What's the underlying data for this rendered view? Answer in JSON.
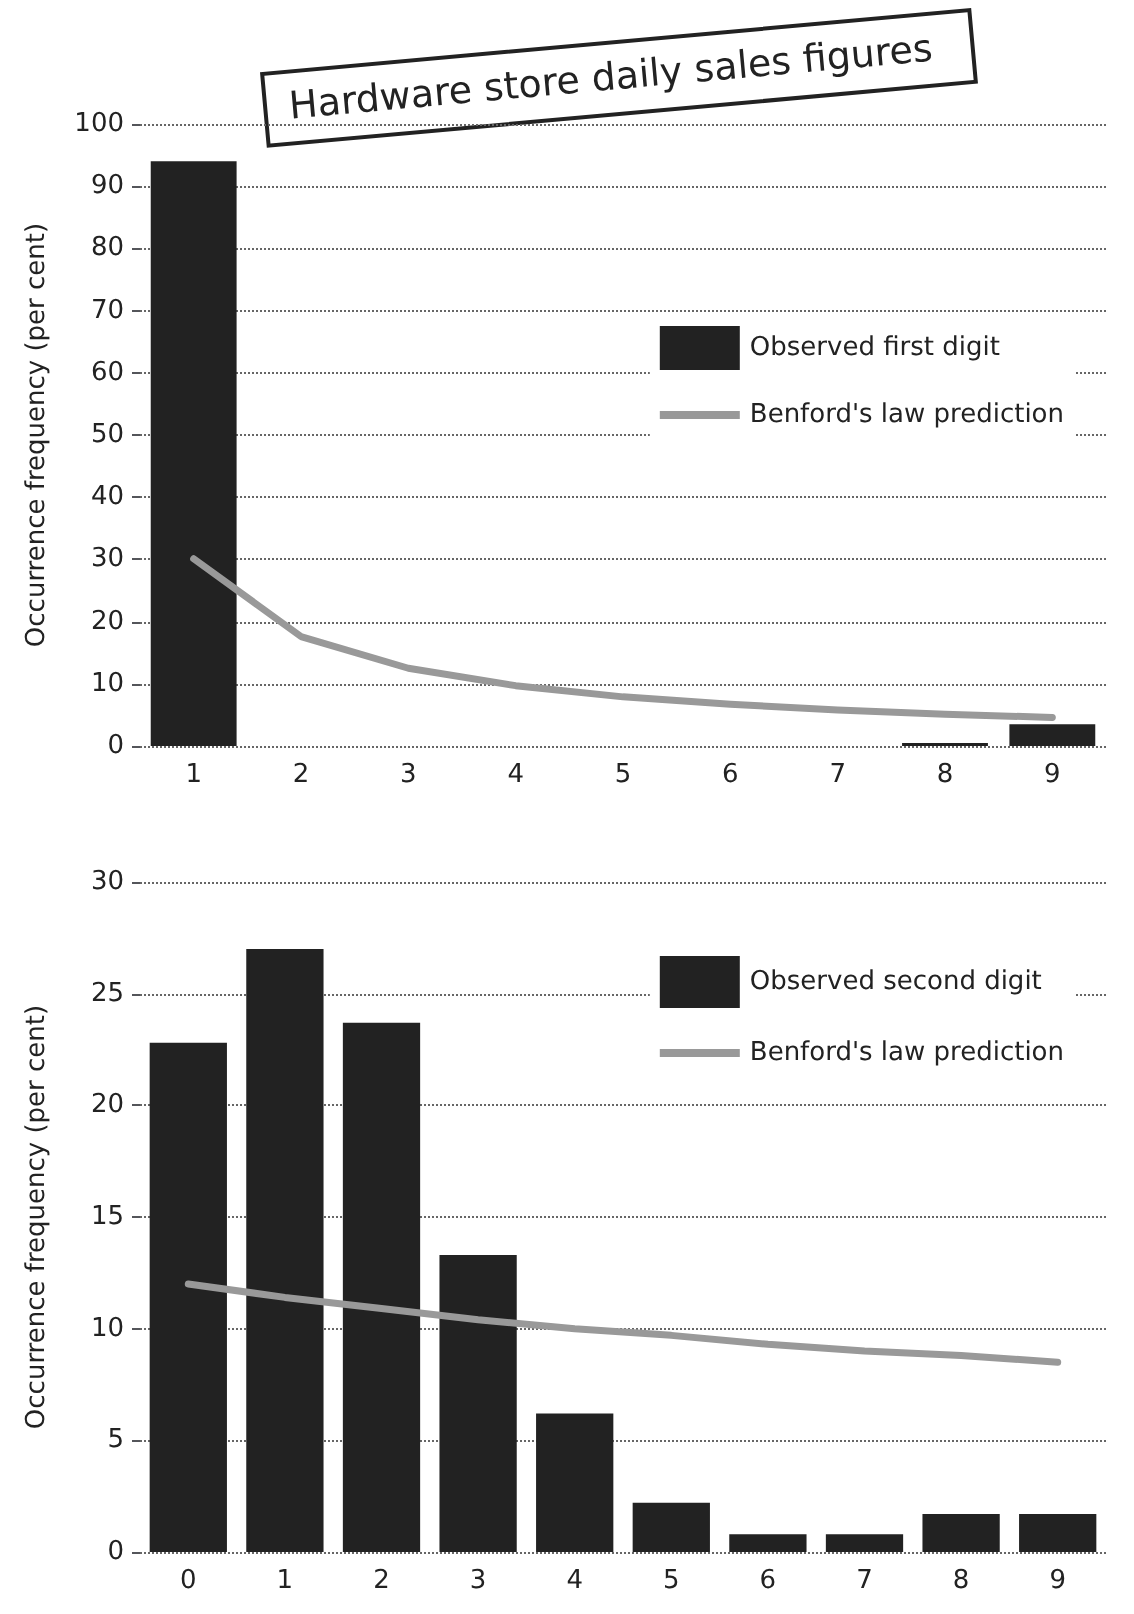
{
  "chart_data": [
    {
      "type": "bar",
      "title": "Hardware store daily sales figures",
      "ylabel": "Occurrence frequency (per cent)",
      "categories": [
        "1",
        "2",
        "3",
        "4",
        "5",
        "6",
        "7",
        "8",
        "9"
      ],
      "ylim": [
        0,
        100
      ],
      "yticks": [
        0,
        10,
        20,
        30,
        40,
        50,
        60,
        70,
        80,
        90,
        100
      ],
      "grid": "y",
      "legend": "top right",
      "series": [
        {
          "name": "Observed first digit",
          "color": "#222222",
          "values": [
            94,
            0,
            0,
            0,
            0,
            0,
            0,
            0.5,
            3.5
          ]
        },
        {
          "name": "Benford's law prediction",
          "type": "line",
          "color": "#999999",
          "values": [
            30.1,
            17.6,
            12.5,
            9.7,
            7.9,
            6.7,
            5.8,
            5.1,
            4.6
          ]
        }
      ]
    },
    {
      "type": "bar",
      "ylabel": "Occurrence frequency (per cent)",
      "categories": [
        "0",
        "1",
        "2",
        "3",
        "4",
        "5",
        "6",
        "7",
        "8",
        "9"
      ],
      "ylim": [
        0,
        30
      ],
      "yticks": [
        0,
        5,
        10,
        15,
        20,
        25,
        30
      ],
      "grid": "y",
      "legend": "top right",
      "series": [
        {
          "name": "Observed second digit",
          "color": "#222222",
          "values": [
            22.8,
            27,
            23.7,
            13.3,
            6.2,
            2.2,
            0.8,
            0.8,
            1.7,
            1.7
          ]
        },
        {
          "name": "Benford's law prediction",
          "type": "line",
          "color": "#999999",
          "values": [
            12.0,
            11.4,
            10.9,
            10.4,
            10.0,
            9.7,
            9.3,
            9.0,
            8.8,
            8.5
          ]
        }
      ]
    }
  ]
}
